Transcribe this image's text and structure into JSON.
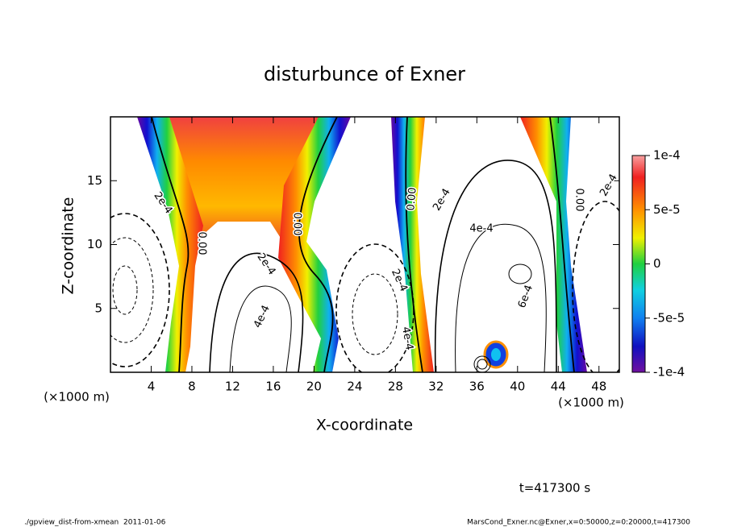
{
  "chart_data": {
    "type": "contour",
    "title": "disturbunce of Exner",
    "xlabel": "X-coordinate",
    "ylabel": "Z-coordinate",
    "x_unit_label": "(×1000 m)",
    "y_unit_label": "(×1000 m)",
    "xlim": [
      0,
      50
    ],
    "xticks": [
      4,
      8,
      12,
      16,
      20,
      24,
      28,
      32,
      36,
      40,
      44,
      48
    ],
    "ylim": [
      0,
      20
    ],
    "yticks": [
      5,
      10,
      15
    ],
    "colorbar": {
      "lim": [
        -0.0001,
        0.0001
      ],
      "ticks": [
        {
          "value": 0.0001,
          "label": "1e-4"
        },
        {
          "value": 5e-05,
          "label": "5e-5"
        },
        0,
        {
          "value": -5e-05,
          "label": "-5e-5"
        },
        {
          "value": -0.0001,
          "label": "-1e-4"
        }
      ]
    },
    "contour_labels": [
      "2e-4",
      "0.00",
      "2e-4",
      "4e-4",
      "0.00",
      "2e-4",
      "4e-4",
      "0.00",
      "2e-4",
      "4e-4",
      "6e-4",
      "0.00",
      "2e-4"
    ],
    "time_label": "t=417300 s",
    "footer_left": "./gpview_dist-from-xmean  2011-01-06",
    "footer_right": "MarsCond_Exner.nc@Exner,x=0:50000,z=0:20000,t=417300"
  }
}
